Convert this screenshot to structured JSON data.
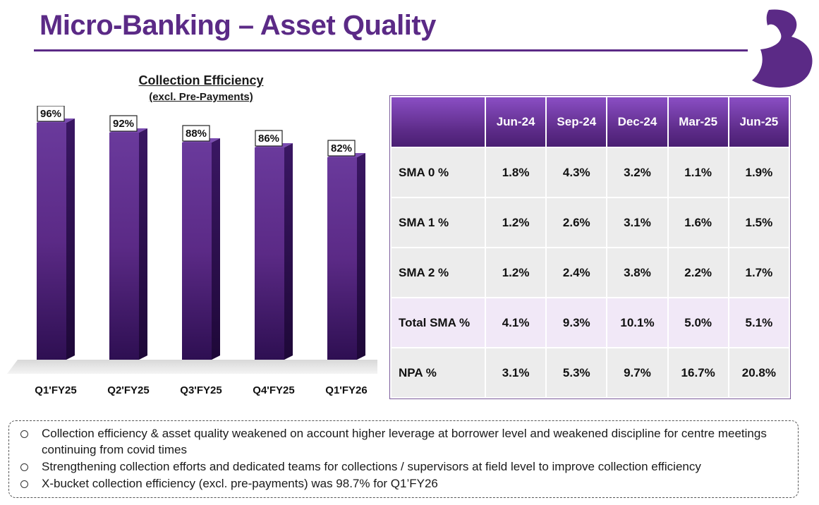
{
  "page": {
    "title": "Micro-Banking – Asset Quality",
    "brand_color": "#5b2a86"
  },
  "chart_data": {
    "type": "bar",
    "title": "Collection Efficiency",
    "subtitle": "(excl. Pre-Payments)",
    "categories": [
      "Q1'FY25",
      "Q2'FY25",
      "Q3'FY25",
      "Q4'FY25",
      "Q1'FY26"
    ],
    "values": [
      96,
      92,
      88,
      86,
      82
    ],
    "data_labels": [
      "96%",
      "92%",
      "88%",
      "86%",
      "82%"
    ],
    "ylim": [
      0,
      100
    ],
    "grid": false,
    "bar_color": "#5b2a86"
  },
  "table": {
    "header_corner": "",
    "columns": [
      "Jun-24",
      "Sep-24",
      "Dec-24",
      "Mar-25",
      "Jun-25"
    ],
    "rows": [
      {
        "label": "SMA 0 %",
        "values": [
          "1.8%",
          "4.3%",
          "3.2%",
          "1.1%",
          "1.9%"
        ],
        "highlight": false
      },
      {
        "label": "SMA 1 %",
        "values": [
          "1.2%",
          "2.6%",
          "3.1%",
          "1.6%",
          "1.5%"
        ],
        "highlight": false
      },
      {
        "label": "SMA 2 %",
        "values": [
          "1.2%",
          "2.4%",
          "3.8%",
          "2.2%",
          "1.7%"
        ],
        "highlight": false
      },
      {
        "label": "Total SMA %",
        "values": [
          "4.1%",
          "9.3%",
          "10.1%",
          "5.0%",
          "5.1%"
        ],
        "highlight": true
      },
      {
        "label": "NPA %",
        "values": [
          "3.1%",
          "5.3%",
          "9.7%",
          "16.7%",
          "20.8%"
        ],
        "highlight": false
      }
    ]
  },
  "notes": [
    "Collection efficiency & asset quality weakened on account higher leverage at borrower level and weakened discipline for centre meetings continuing from covid times",
    "Strengthening collection efforts and dedicated teams for collections / supervisors at field level to improve collection efficiency",
    "X-bucket collection efficiency (excl. pre-payments) was 98.7% for Q1’FY26"
  ]
}
